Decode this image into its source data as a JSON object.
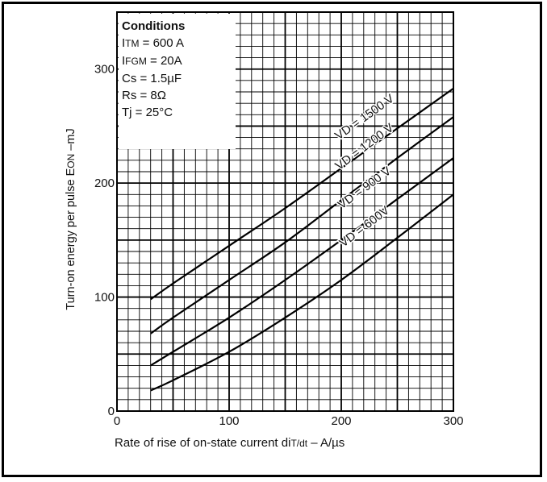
{
  "chart_data": {
    "type": "line",
    "ylabel_parts": [
      "Turn-on energy per pulse E",
      "ON",
      " –mJ"
    ],
    "xlabel_parts": [
      "Rate of rise of on-state current di",
      "T/dt",
      " – A/µs"
    ],
    "xlim": [
      0,
      300
    ],
    "ylim": [
      0,
      350
    ],
    "x_ticks": [
      "0",
      "100",
      "200",
      "300"
    ],
    "y_ticks": [
      "0",
      "100",
      "200",
      "300"
    ],
    "grid": true,
    "conditions": {
      "title": "Conditions",
      "lines": [
        [
          "I",
          "TM",
          " = 600 A"
        ],
        [
          "I",
          "FGM",
          " = 20A"
        ],
        [
          "Cs = 1.5µF",
          "",
          ""
        ],
        [
          "Rs = 8Ω",
          "",
          ""
        ],
        [
          "Tj = 25°C",
          "",
          ""
        ]
      ]
    },
    "series": [
      {
        "name": "VD = 1500 V",
        "x": [
          30,
          50,
          100,
          150,
          200,
          250,
          300
        ],
        "y": [
          98,
          112,
          145,
          178,
          213,
          248,
          283
        ]
      },
      {
        "name": "VD = 1200 V",
        "x": [
          30,
          50,
          100,
          150,
          200,
          250,
          300
        ],
        "y": [
          68,
          82,
          115,
          148,
          185,
          222,
          258
        ]
      },
      {
        "name": "VD = 900 V",
        "x": [
          30,
          50,
          100,
          150,
          200,
          250,
          300
        ],
        "y": [
          40,
          52,
          82,
          115,
          150,
          186,
          222
        ]
      },
      {
        "name": "VD = 600V",
        "x": [
          30,
          50,
          100,
          150,
          200,
          250,
          300
        ],
        "y": [
          18,
          27,
          52,
          82,
          115,
          152,
          190
        ]
      }
    ]
  }
}
